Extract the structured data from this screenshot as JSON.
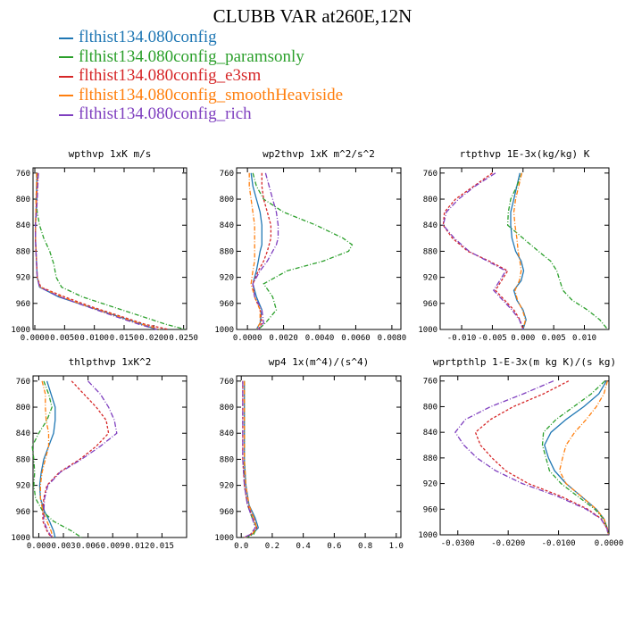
{
  "figure_title": "CLUBB VAR at260E,12N",
  "legend": [
    {
      "name": "flthist134.080config",
      "color": "#1f77b4"
    },
    {
      "name": "flthist134.080config_paramsonly",
      "color": "#2ca02c"
    },
    {
      "name": "flthist134.080config_e3sm",
      "color": "#d62728"
    },
    {
      "name": "flthist134.080config_smoothHeaviside",
      "color": "#ff7f0e"
    },
    {
      "name": "flthist134.080config_rich",
      "color": "#7f3fbf"
    }
  ],
  "y_ticks": [
    760,
    800,
    840,
    880,
    920,
    960,
    1000
  ],
  "chart_data": [
    {
      "type": "line",
      "title": "wpthvp  1xK m/s",
      "xlim": [
        -0.0003,
        0.0255
      ],
      "ylim": [
        1000,
        752
      ],
      "xticks": [
        0,
        0.005,
        0.01,
        0.015,
        0.02,
        0.025
      ],
      "xticklabels": [
        "0.0000",
        "0.0050",
        "0.0100",
        "0.0150",
        "0.0200",
        "0.0250"
      ],
      "y": [
        760,
        780,
        800,
        820,
        840,
        860,
        880,
        900,
        920,
        935,
        950,
        965,
        980,
        992,
        1000
      ],
      "series": [
        {
          "name": "flthist134.080config",
          "values": [
            0.0004,
            0.0003,
            0.0003,
            0.0002,
            0.0001,
            0.0001,
            0.0002,
            0.0003,
            0.0004,
            0.0008,
            0.004,
            0.009,
            0.014,
            0.018,
            0.0205
          ]
        },
        {
          "name": "flthist134.080config_paramsonly",
          "values": [
            0.0003,
            0.0003,
            0.0002,
            0.0004,
            0.0008,
            0.0015,
            0.0025,
            0.0032,
            0.0036,
            0.0045,
            0.008,
            0.013,
            0.018,
            0.022,
            0.0253
          ]
        },
        {
          "name": "flthist134.080config_e3sm",
          "values": [
            0.0005,
            0.0004,
            0.0003,
            0.0002,
            0.0001,
            0.0001,
            0.0002,
            0.0003,
            0.0004,
            0.001,
            0.005,
            0.0095,
            0.0145,
            0.0185,
            0.0225
          ]
        },
        {
          "name": "flthist134.080config_smoothHeaviside",
          "values": [
            0.0003,
            0.0003,
            0.0002,
            0.0002,
            0.0001,
            0.0001,
            0.0002,
            0.0003,
            0.0004,
            0.0009,
            0.0045,
            0.009,
            0.014,
            0.018,
            0.021
          ]
        },
        {
          "name": "flthist134.080config_rich",
          "values": [
            0.0006,
            0.0005,
            0.0004,
            0.0003,
            0.0001,
            0.0001,
            0.0002,
            0.0003,
            0.0004,
            0.0008,
            0.0042,
            0.0088,
            0.0135,
            0.0175,
            0.0205
          ]
        }
      ]
    },
    {
      "type": "line",
      "title": "wp2thvp  1xK m^2/s^2",
      "xlim": [
        -0.0006,
        0.0085
      ],
      "ylim": [
        1000,
        752
      ],
      "xticks": [
        0,
        0.002,
        0.004,
        0.006,
        0.008
      ],
      "xticklabels": [
        "0.0000",
        "0.0020",
        "0.0040",
        "0.0060",
        "0.0080"
      ],
      "y": [
        760,
        780,
        800,
        820,
        840,
        860,
        870,
        880,
        895,
        910,
        930,
        950,
        970,
        990,
        1000
      ],
      "series": [
        {
          "name": "flthist134.080config",
          "values": [
            0.0002,
            0.0003,
            0.0005,
            0.0007,
            0.0008,
            0.0008,
            0.0008,
            0.0007,
            0.0006,
            0.0005,
            0.0003,
            0.0005,
            0.0008,
            0.0007,
            0.0005
          ]
        },
        {
          "name": "flthist134.080config_paramsonly",
          "values": [
            0.0003,
            0.0005,
            0.0009,
            0.002,
            0.0038,
            0.0053,
            0.0058,
            0.0056,
            0.0042,
            0.0022,
            0.0009,
            0.0014,
            0.0016,
            0.001,
            0.0006
          ]
        },
        {
          "name": "flthist134.080config_e3sm",
          "values": [
            0.0008,
            0.0008,
            0.0009,
            0.0011,
            0.0013,
            0.0013,
            0.0012,
            0.0011,
            0.0009,
            0.0006,
            0.0003,
            0.0004,
            0.0007,
            0.0008,
            0.0006
          ]
        },
        {
          "name": "flthist134.080config_smoothHeaviside",
          "values": [
            0.0001,
            0.0001,
            0.0002,
            0.0003,
            0.0004,
            0.0004,
            0.0004,
            0.0004,
            0.0004,
            0.0003,
            0.0002,
            0.0004,
            0.0007,
            0.0007,
            0.0005
          ]
        },
        {
          "name": "flthist134.080config_rich",
          "values": [
            0.001,
            0.0012,
            0.0014,
            0.0016,
            0.0017,
            0.0017,
            0.0016,
            0.0014,
            0.0011,
            0.0007,
            0.0003,
            0.0004,
            0.0008,
            0.0009,
            0.0006
          ]
        }
      ]
    },
    {
      "type": "line",
      "title": "rtpthvp  1E-3x(kg/kg) K",
      "xlim": [
        -0.0135,
        0.014
      ],
      "ylim": [
        1000,
        752
      ],
      "xticks": [
        -0.01,
        -0.005,
        0,
        0.005,
        0.01
      ],
      "xticklabels": [
        "-0.010",
        "-0.005",
        "0.000",
        "0.005",
        "0.010"
      ],
      "y": [
        760,
        780,
        800,
        820,
        840,
        860,
        880,
        895,
        910,
        925,
        940,
        955,
        970,
        985,
        1000
      ],
      "series": [
        {
          "name": "flthist134.080config",
          "values": [
            -0.0005,
            -0.001,
            -0.0015,
            -0.002,
            -0.002,
            -0.0018,
            -0.0012,
            -0.0003,
            0.0001,
            -0.0003,
            -0.0015,
            -0.001,
            0.0,
            0.0005,
            0.0
          ]
        },
        {
          "name": "flthist134.080config_paramsonly",
          "values": [
            -0.0002,
            -0.001,
            -0.002,
            -0.0024,
            -0.0025,
            0.0,
            0.0025,
            0.0045,
            0.0055,
            0.006,
            0.0065,
            0.008,
            0.0105,
            0.0125,
            0.0138
          ]
        },
        {
          "name": "flthist134.080config_e3sm",
          "values": [
            -0.005,
            -0.008,
            -0.011,
            -0.0128,
            -0.013,
            -0.0115,
            -0.009,
            -0.0055,
            -0.0025,
            -0.0035,
            -0.0045,
            -0.003,
            -0.0015,
            -0.0005,
            0.0
          ]
        },
        {
          "name": "flthist134.080config_smoothHeaviside",
          "values": [
            -0.0002,
            -0.0007,
            -0.0012,
            -0.0015,
            -0.0013,
            -0.001,
            -0.0008,
            -0.0005,
            -0.0003,
            -0.0006,
            -0.0013,
            -0.0009,
            -0.0001,
            0.0004,
            0.0
          ]
        },
        {
          "name": "flthist134.080config_rich",
          "values": [
            -0.0045,
            -0.0078,
            -0.0105,
            -0.0125,
            -0.013,
            -0.0112,
            -0.0088,
            -0.0058,
            -0.0028,
            -0.0038,
            -0.0048,
            -0.0033,
            -0.0018,
            -0.0006,
            0.0
          ]
        }
      ]
    },
    {
      "type": "line",
      "title": "thlpthvp  1xK^2",
      "xlim": [
        -0.0007,
        0.018
      ],
      "ylim": [
        1000,
        752
      ],
      "xticks": [
        0,
        0.003,
        0.006,
        0.009,
        0.012,
        0.015
      ],
      "xticklabels": [
        "0.000",
        "0.003",
        "0.006",
        "0.009",
        "0.012",
        "0.015"
      ],
      "y": [
        760,
        780,
        800,
        820,
        840,
        860,
        880,
        900,
        920,
        940,
        960,
        975,
        990,
        1000
      ],
      "series": [
        {
          "name": "flthist134.080config",
          "values": [
            0.001,
            0.0015,
            0.002,
            0.002,
            0.0018,
            0.0012,
            0.0006,
            0.0003,
            0.0001,
            0.0002,
            0.0007,
            0.0013,
            0.0018,
            0.002
          ]
        },
        {
          "name": "flthist134.080config_paramsonly",
          "values": [
            0.0006,
            0.0012,
            0.0016,
            0.001,
            0.0,
            -0.0008,
            -0.0006,
            -0.0005,
            -0.0006,
            -0.0004,
            0.0005,
            0.0018,
            0.004,
            0.0052
          ]
        },
        {
          "name": "flthist134.080config_e3sm",
          "values": [
            0.004,
            0.0055,
            0.007,
            0.0082,
            0.0085,
            0.007,
            0.005,
            0.0025,
            0.001,
            0.0006,
            0.0005,
            0.0005,
            0.001,
            0.0015
          ]
        },
        {
          "name": "flthist134.080config_smoothHeaviside",
          "values": [
            0.0004,
            0.0008,
            0.0008,
            0.0009,
            0.0012,
            0.0012,
            0.0008,
            0.0004,
            0.0002,
            0.0002,
            0.0005,
            0.001,
            0.0015,
            0.0017
          ]
        },
        {
          "name": "flthist134.080config_rich",
          "values": [
            0.006,
            0.0075,
            0.0085,
            0.0092,
            0.0095,
            0.0075,
            0.0052,
            0.0026,
            0.0011,
            0.0007,
            0.0006,
            0.0006,
            0.0011,
            0.0016
          ]
        }
      ]
    },
    {
      "type": "line",
      "title": "wp4  1x(m^4)/(s^4)",
      "xlim": [
        -0.03,
        1.03
      ],
      "ylim": [
        1000,
        752
      ],
      "xticks": [
        0,
        0.2,
        0.4,
        0.6,
        0.8,
        1.0
      ],
      "xticklabels": [
        "0.0",
        "0.2",
        "0.4",
        "0.6",
        "0.8",
        "1.0"
      ],
      "y": [
        760,
        800,
        840,
        880,
        920,
        950,
        970,
        985,
        995,
        1000
      ],
      "series": [
        {
          "name": "flthist134.080config",
          "values": [
            0.02,
            0.02,
            0.02,
            0.02,
            0.03,
            0.05,
            0.09,
            0.11,
            0.07,
            0.02
          ]
        },
        {
          "name": "flthist134.080config_paramsonly",
          "values": [
            0.02,
            0.02,
            0.02,
            0.02,
            0.02,
            0.04,
            0.07,
            0.1,
            0.08,
            0.03
          ]
        },
        {
          "name": "flthist134.080config_e3sm",
          "values": [
            0.01,
            0.01,
            0.01,
            0.01,
            0.02,
            0.04,
            0.08,
            0.1,
            0.06,
            0.02
          ]
        },
        {
          "name": "flthist134.080config_smoothHeaviside",
          "values": [
            0.02,
            0.02,
            0.02,
            0.02,
            0.03,
            0.05,
            0.08,
            0.1,
            0.07,
            0.02
          ]
        },
        {
          "name": "flthist134.080config_rich",
          "values": [
            0.01,
            0.01,
            0.01,
            0.01,
            0.02,
            0.04,
            0.07,
            0.09,
            0.06,
            0.02
          ]
        }
      ]
    },
    {
      "type": "line",
      "title": "wprtpthlp  1-E-3x(m kg K)/(s kg)",
      "xlim": [
        -0.0335,
        0.0
      ],
      "ylim": [
        1000,
        752
      ],
      "xticks": [
        -0.03,
        -0.02,
        -0.01,
        0.0
      ],
      "xticklabels": [
        "-0.0300",
        "-0.0200",
        "-0.0100",
        "0.0000"
      ],
      "y": [
        760,
        780,
        800,
        820,
        840,
        860,
        880,
        900,
        920,
        940,
        960,
        975,
        990,
        1000
      ],
      "series": [
        {
          "name": "flthist134.080config",
          "values": [
            -0.0005,
            -0.002,
            -0.005,
            -0.0085,
            -0.0115,
            -0.0128,
            -0.012,
            -0.0108,
            -0.0085,
            -0.0055,
            -0.0025,
            -0.001,
            -0.0003,
            -0.0001
          ]
        },
        {
          "name": "flthist134.080config_paramsonly",
          "values": [
            -0.0008,
            -0.0035,
            -0.007,
            -0.0105,
            -0.013,
            -0.0132,
            -0.0125,
            -0.0118,
            -0.0095,
            -0.0062,
            -0.0028,
            -0.0011,
            -0.0003,
            -0.0001
          ]
        },
        {
          "name": "flthist134.080config_e3sm",
          "values": [
            -0.008,
            -0.013,
            -0.019,
            -0.0235,
            -0.0265,
            -0.0255,
            -0.0232,
            -0.0205,
            -0.016,
            -0.0095,
            -0.0042,
            -0.0015,
            -0.0004,
            -0.0001
          ]
        },
        {
          "name": "flthist134.080config_smoothHeaviside",
          "values": [
            -0.0003,
            -0.001,
            -0.0025,
            -0.0045,
            -0.0068,
            -0.0085,
            -0.0092,
            -0.0098,
            -0.0085,
            -0.0055,
            -0.0025,
            -0.001,
            -0.0003,
            -0.0001
          ]
        },
        {
          "name": "flthist134.080config_rich",
          "values": [
            -0.011,
            -0.017,
            -0.0235,
            -0.0285,
            -0.0305,
            -0.0288,
            -0.0262,
            -0.0225,
            -0.0172,
            -0.0102,
            -0.0045,
            -0.0016,
            -0.0004,
            -0.0001
          ]
        }
      ]
    }
  ]
}
